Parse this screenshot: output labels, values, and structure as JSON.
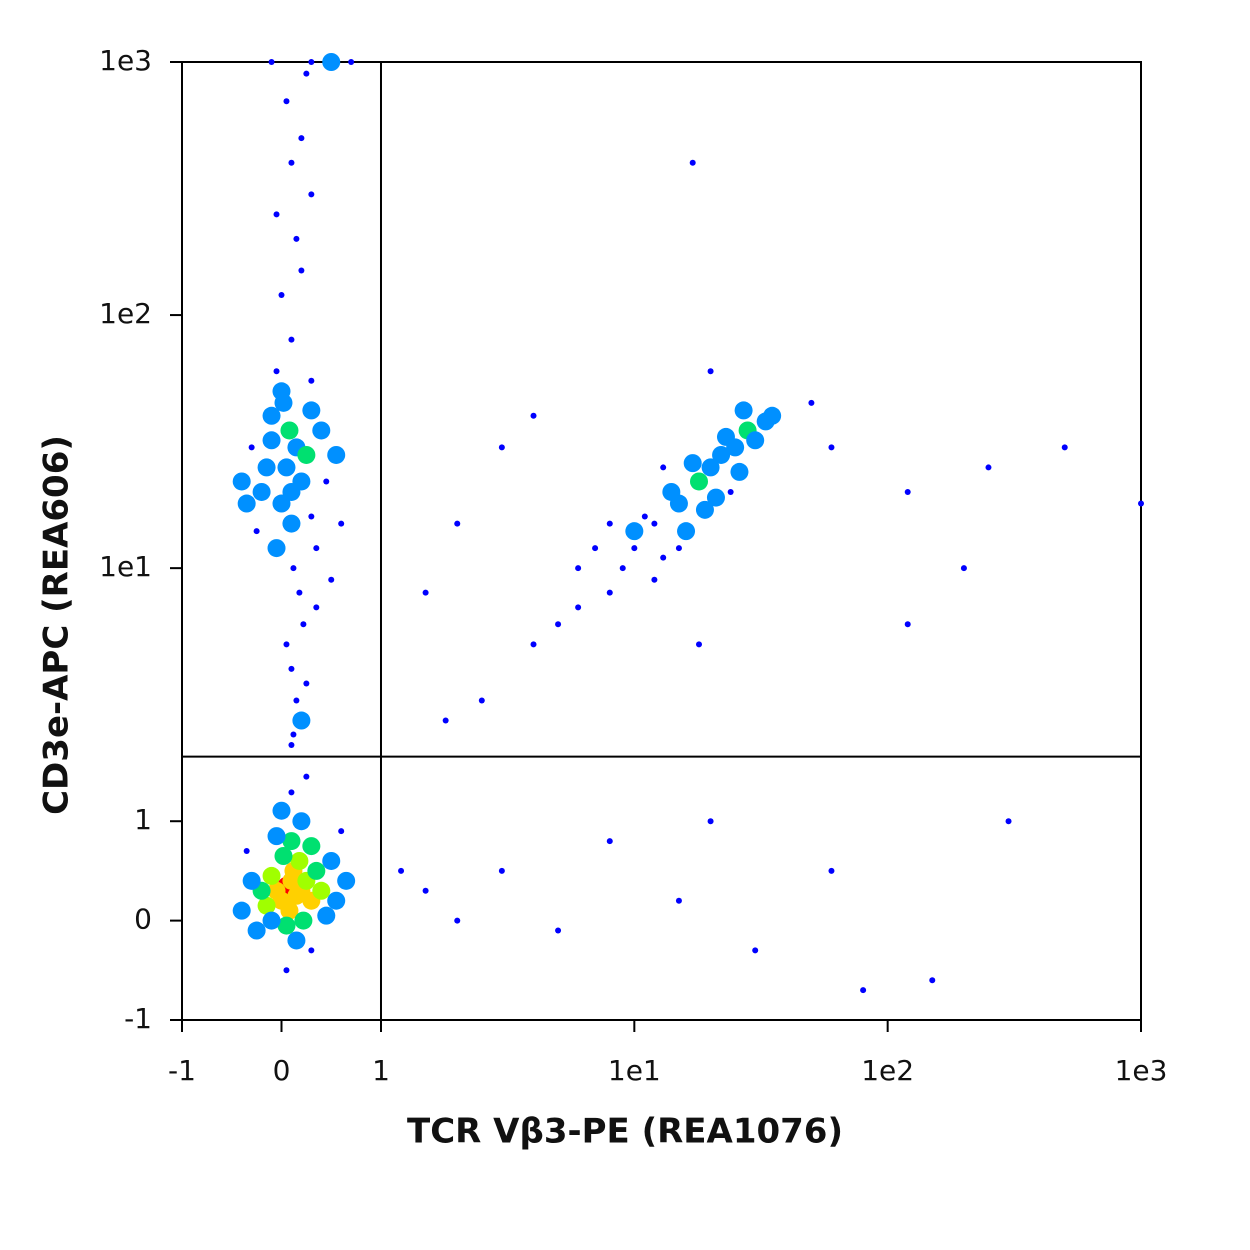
{
  "chart_data": {
    "type": "scatter",
    "x_label": "TCR Vβ3-PE (REA1076)",
    "y_label": "CD3e-APC (REA606)",
    "xscale": "biexponential",
    "yscale": "biexponential",
    "xlim": [
      -1,
      1000
    ],
    "ylim": [
      -1,
      1000
    ],
    "xticks": [
      -1,
      0,
      1,
      {
        "value": 10,
        "label": "1e1"
      },
      {
        "value": 100,
        "label": "1e2"
      },
      {
        "value": 1000,
        "label": "1e3"
      }
    ],
    "yticks": [
      -1,
      0,
      1,
      {
        "value": 10,
        "label": "1e1"
      },
      {
        "value": 100,
        "label": "1e2"
      },
      {
        "value": 1000,
        "label": "1e3"
      }
    ],
    "gate_x": 1,
    "gate_y": 1.8,
    "colormap": [
      "#0000ff",
      "#0090ff",
      "#00e070",
      "#a0ff00",
      "#ffd000",
      "#ff0000"
    ],
    "x": [
      0.1,
      0.05,
      0.15,
      0.1,
      0,
      0.2,
      -0.05,
      0.12,
      0.08,
      0.25,
      -0.1,
      0.3,
      0.18,
      0.02,
      -0.15,
      0.35,
      -0.2,
      0.22,
      0.05,
      -0.1,
      0.4,
      -0.3,
      0.1,
      0.3,
      -0.05,
      0.45,
      -0.25,
      0.15,
      0.5,
      -0.35,
      0.2,
      0,
      0.55,
      -0.4,
      0.3,
      0.6,
      0.1,
      0.25,
      0.05,
      0.65,
      0.1,
      0.05,
      0.15,
      0.1,
      0,
      0.2,
      0.08,
      -0.05,
      0.12,
      0.25,
      -0.1,
      0.3,
      0.18,
      0.02,
      -0.15,
      0.35,
      -0.2,
      0.22,
      0.05,
      -0.1,
      0.4,
      -0.25,
      0.1,
      0.3,
      0,
      0.45,
      -0.3,
      0.15,
      0.5,
      -0.35,
      0.2,
      0.1,
      0.3,
      -0.05,
      0.55,
      -0.4,
      0.25,
      0.6,
      0.35,
      0.12,
      0.1,
      0,
      0.2,
      0.15,
      -0.05,
      0.3,
      0.1,
      0.2,
      0.05,
      0.25,
      0.3,
      -0.1,
      0.5,
      0.7,
      20,
      18,
      25,
      22,
      15,
      12,
      14,
      10,
      11,
      16,
      28,
      30,
      24,
      13,
      9,
      8,
      7,
      6,
      19,
      21,
      17,
      26,
      33,
      35,
      12,
      10,
      15,
      5,
      4,
      6,
      23,
      20,
      8,
      13,
      27,
      3,
      2,
      1.5,
      4,
      60,
      120,
      250,
      500,
      1000,
      200,
      120,
      50,
      1.2,
      1.5,
      2,
      3,
      5,
      8,
      15,
      20,
      30,
      60,
      80,
      150,
      300,
      18,
      17,
      2.5,
      1.8
    ],
    "values": [
      0.3,
      0.35,
      0.25,
      0.4,
      0.2,
      0.3,
      0.3,
      0.5,
      0.1,
      0.4,
      0.45,
      0.2,
      0.6,
      0.65,
      0.15,
      0.5,
      0.3,
      0,
      -0.05,
      0,
      0.3,
      0.4,
      0.8,
      0.75,
      0.85,
      0.05,
      -0.1,
      -0.2,
      0.6,
      0.7,
      1,
      1.1,
      0.2,
      0.1,
      -0.3,
      0.9,
      1.3,
      1.5,
      -0.5,
      0.4,
      20,
      25,
      30,
      15,
      18,
      22,
      35,
      12,
      10,
      28,
      40,
      16,
      8,
      45,
      25,
      12,
      20,
      6,
      5,
      32,
      35,
      14,
      4,
      42,
      50,
      22,
      30,
      3,
      9,
      18,
      2.5,
      2,
      55,
      60,
      28,
      22,
      3.5,
      15,
      7,
      2.2,
      80,
      120,
      150,
      200,
      250,
      300,
      400,
      500,
      700,
      900,
      1000,
      1000,
      1000,
      1000,
      25,
      22,
      30,
      28,
      18,
      15,
      20,
      12,
      16,
      14,
      35,
      32,
      20,
      11,
      10,
      8,
      12,
      7,
      17,
      19,
      26,
      24,
      38,
      40,
      9,
      14,
      12,
      6,
      5,
      10,
      33,
      60,
      15,
      25,
      42,
      30,
      15,
      8,
      40,
      30,
      20,
      25,
      30,
      18,
      10,
      6,
      45,
      0.5,
      0.3,
      0,
      0.5,
      -0.1,
      0.8,
      0.2,
      1,
      -0.3,
      0.5,
      -0.7,
      -0.6,
      1,
      5,
      400,
      3,
      2.5
    ]
  }
}
